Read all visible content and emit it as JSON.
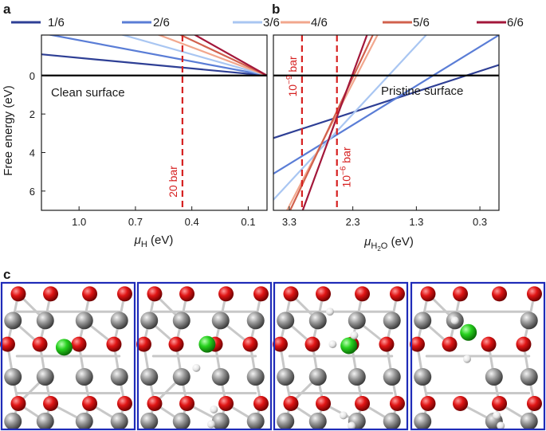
{
  "panels": {
    "a": "a",
    "b": "b",
    "c": "c"
  },
  "colors": {
    "1/6": "#2e3f95",
    "2/6": "#5a7dd6",
    "3/6": "#a9c6f2",
    "4/6": "#f2a78d",
    "5/6": "#d1614d",
    "6/6": "#a3173a",
    "threshold": "#d62020",
    "zero_line": "#000000"
  },
  "chart_data": [
    {
      "type": "line",
      "panel": "a",
      "xlabel_symbol": "μ",
      "xlabel_sub": "H",
      "xlabel_unit": " (eV)",
      "ylabel": "Free energy (eV)",
      "xlim": [
        1.2,
        0.0
      ],
      "ylim": [
        -2.1,
        7.0
      ],
      "x_ticks": [
        1.0,
        0.7,
        0.4,
        0.1
      ],
      "x_tick_labels": [
        "1.0",
        "0.7",
        "0.4",
        "0.1"
      ],
      "y_ticks": [
        0,
        2,
        4,
        6
      ],
      "y_tick_labels": [
        "0",
        "2",
        "4",
        "6"
      ],
      "series": [
        {
          "name": "1/6",
          "x": [
            1.2,
            0.0
          ],
          "y": [
            -1.1,
            0.0
          ]
        },
        {
          "name": "2/6",
          "x": [
            1.2,
            0.0
          ],
          "y": [
            -2.2,
            0.0
          ]
        },
        {
          "name": "3/6",
          "x": [
            1.2,
            0.0
          ],
          "y": [
            -3.3,
            0.0
          ]
        },
        {
          "name": "4/6",
          "x": [
            1.2,
            0.0
          ],
          "y": [
            -4.4,
            0.0
          ]
        },
        {
          "name": "5/6",
          "x": [
            1.2,
            0.0
          ],
          "y": [
            -5.5,
            0.0
          ]
        },
        {
          "name": "6/6",
          "x": [
            1.2,
            0.0
          ],
          "y": [
            -6.6,
            0.0
          ]
        }
      ],
      "hline": 0,
      "vlines": [
        {
          "x": 0.45,
          "label": "20 bar"
        }
      ],
      "annotations": [
        {
          "text": "Clean surface"
        }
      ]
    },
    {
      "type": "line",
      "panel": "b",
      "xlabel_symbol": "μ",
      "xlabel_sub": "H",
      "xlabel_subsub": "2",
      "xlabel_sub2": "O",
      "xlabel_unit": " (eV)",
      "xlim": [
        3.55,
        0.0
      ],
      "ylim": [
        -2.1,
        7.0
      ],
      "x_ticks": [
        3.3,
        2.3,
        1.3,
        0.3
      ],
      "x_tick_labels": [
        "3.3",
        "2.3",
        "1.3",
        "0.3"
      ],
      "series": [
        {
          "name": "1/6",
          "x": [
            3.55,
            0.0
          ],
          "y": [
            3.25,
            -0.55
          ]
        },
        {
          "name": "2/6",
          "x": [
            3.55,
            0.0
          ],
          "y": [
            5.1,
            -2.1
          ]
        },
        {
          "name": "3/6",
          "x": [
            3.55,
            0.5
          ],
          "y": [
            6.45,
            -4.4
          ]
        },
        {
          "name": "4/6",
          "x": [
            3.35,
            1.35
          ],
          "y": [
            7.1,
            -5.7
          ]
        },
        {
          "name": "5/6",
          "x": [
            3.3,
            1.5
          ],
          "y": [
            7.1,
            -5.5
          ]
        },
        {
          "name": "6/6",
          "x": [
            3.1,
            1.7
          ],
          "y": [
            7.1,
            -5.5
          ]
        }
      ],
      "hline": 0,
      "vlines": [
        {
          "x": 3.1,
          "label_base": "10",
          "label_exp": "−9",
          "label_unit": " bar"
        },
        {
          "x": 2.55,
          "label_base": "10",
          "label_exp": "−6",
          "label_unit": " bar"
        }
      ],
      "annotations": [
        {
          "text": "Pristine surface"
        }
      ]
    }
  ],
  "legend": [
    "1/6",
    "2/6",
    "3/6",
    "4/6",
    "5/6",
    "6/6"
  ],
  "structures": [
    {
      "green": [
        [
          0.47,
          0.44
        ]
      ],
      "white": []
    },
    {
      "green": [
        [
          0.52,
          0.42
        ]
      ],
      "white": [
        [
          0.44,
          0.58
        ],
        [
          0.57,
          0.86
        ],
        [
          0.55,
          0.96
        ]
      ]
    },
    {
      "green": [
        [
          0.56,
          0.43
        ]
      ],
      "white": [
        [
          0.42,
          0.2
        ],
        [
          0.44,
          0.42
        ],
        [
          0.6,
          0.36
        ],
        [
          0.52,
          0.9
        ],
        [
          0.58,
          0.97
        ]
      ]
    },
    {
      "green": [
        [
          0.43,
          0.34
        ]
      ],
      "white": [
        [
          0.33,
          0.26
        ],
        [
          0.42,
          0.52
        ],
        [
          0.64,
          0.9
        ],
        [
          0.67,
          0.97
        ]
      ]
    }
  ]
}
